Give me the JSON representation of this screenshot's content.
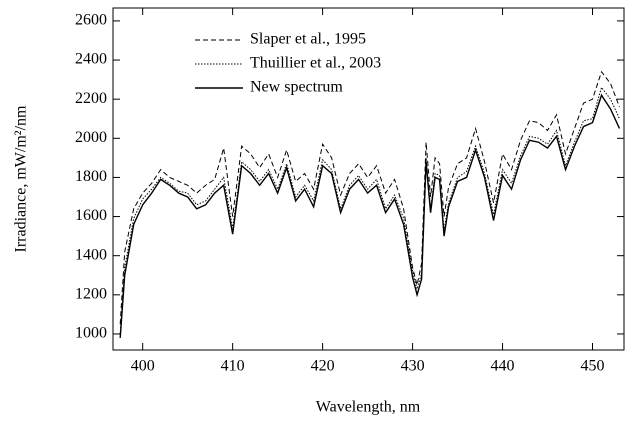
{
  "chart_data": {
    "type": "line",
    "x_label": "Wavelength, nm",
    "y_label": "Irradiance, mW/m²/nm",
    "x": [
      397.5,
      398,
      399,
      400,
      401,
      402,
      403,
      404,
      405,
      406,
      407,
      408,
      409,
      410,
      411,
      412,
      413,
      414,
      415,
      416,
      417,
      418,
      419,
      420,
      421,
      422,
      423,
      424,
      425,
      426,
      427,
      428,
      429,
      430,
      430.5,
      431,
      431.5,
      432,
      432.5,
      433,
      433.5,
      434,
      435,
      436,
      437,
      438,
      439,
      440,
      441,
      442,
      443,
      444,
      445,
      446,
      447,
      448,
      449,
      450,
      451,
      452,
      453
    ],
    "series": [
      {
        "name": "Slaper et al., 1995",
        "color": "#000000",
        "dash": "5,3",
        "values": [
          1050,
          1420,
          1640,
          1720,
          1770,
          1840,
          1800,
          1780,
          1760,
          1720,
          1760,
          1790,
          1950,
          1600,
          1960,
          1920,
          1850,
          1920,
          1800,
          1940,
          1780,
          1820,
          1740,
          1970,
          1900,
          1710,
          1820,
          1870,
          1800,
          1860,
          1720,
          1790,
          1640,
          1340,
          1250,
          1360,
          1980,
          1700,
          1900,
          1870,
          1600,
          1750,
          1870,
          1900,
          2050,
          1880,
          1670,
          1920,
          1840,
          1990,
          2090,
          2080,
          2040,
          2120,
          1920,
          2050,
          2180,
          2200,
          2340,
          2280,
          2160
        ]
      },
      {
        "name": "Thuillier et al., 2003",
        "color": "#000000",
        "dash": "1.5,1.5",
        "values": [
          1000,
          1340,
          1590,
          1690,
          1740,
          1800,
          1770,
          1730,
          1720,
          1660,
          1680,
          1740,
          1800,
          1540,
          1880,
          1840,
          1780,
          1840,
          1740,
          1870,
          1700,
          1760,
          1680,
          1890,
          1840,
          1640,
          1760,
          1810,
          1740,
          1790,
          1640,
          1710,
          1590,
          1320,
          1230,
          1310,
          1900,
          1640,
          1820,
          1810,
          1530,
          1670,
          1800,
          1830,
          1960,
          1820,
          1610,
          1840,
          1770,
          1910,
          2010,
          2000,
          1970,
          2040,
          1860,
          1980,
          2090,
          2100,
          2260,
          2200,
          2100
        ]
      },
      {
        "name": "New spectrum",
        "color": "#000000",
        "dash": "",
        "values": [
          980,
          1300,
          1560,
          1660,
          1720,
          1790,
          1760,
          1720,
          1700,
          1640,
          1660,
          1720,
          1760,
          1510,
          1860,
          1820,
          1760,
          1820,
          1720,
          1850,
          1680,
          1740,
          1650,
          1860,
          1820,
          1620,
          1740,
          1790,
          1720,
          1760,
          1620,
          1690,
          1560,
          1290,
          1200,
          1280,
          1880,
          1620,
          1800,
          1790,
          1500,
          1650,
          1780,
          1800,
          1940,
          1800,
          1580,
          1810,
          1740,
          1890,
          1990,
          1980,
          1950,
          2010,
          1840,
          1960,
          2060,
          2080,
          2220,
          2150,
          2050
        ]
      }
    ],
    "xlim": [
      396.7,
      453.5
    ],
    "xticks": [
      400,
      410,
      420,
      430,
      440,
      450
    ],
    "ylim": [
      918,
      2666
    ],
    "yticks": [
      1000,
      1200,
      1400,
      1600,
      1800,
      2000,
      2200,
      2400,
      2600
    ],
    "legend": "upper left"
  }
}
